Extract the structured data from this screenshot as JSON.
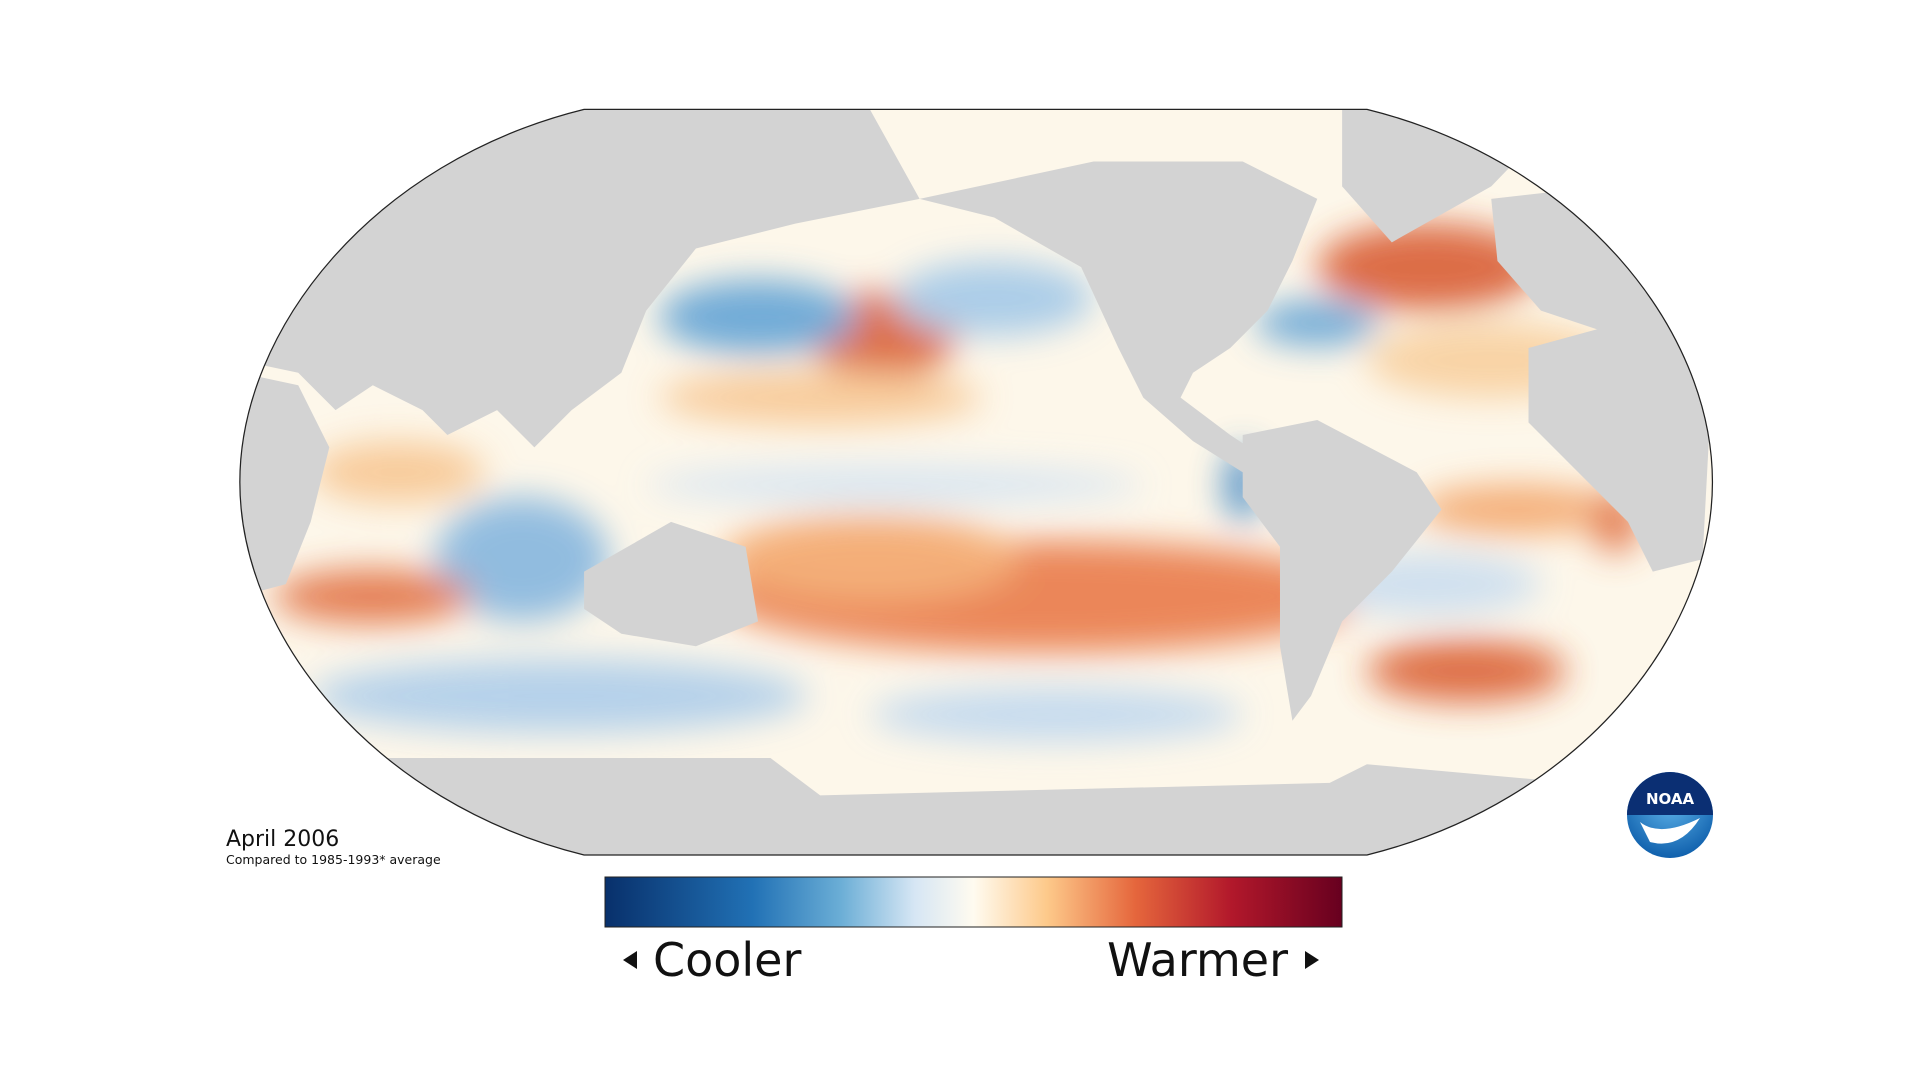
{
  "map": {
    "title": "April 2006",
    "subtitle": "Compared to 1985-1993* average"
  },
  "legend": {
    "low_label": "Cooler",
    "high_label": "Warmer"
  },
  "logo": {
    "text": "NOAA"
  }
}
